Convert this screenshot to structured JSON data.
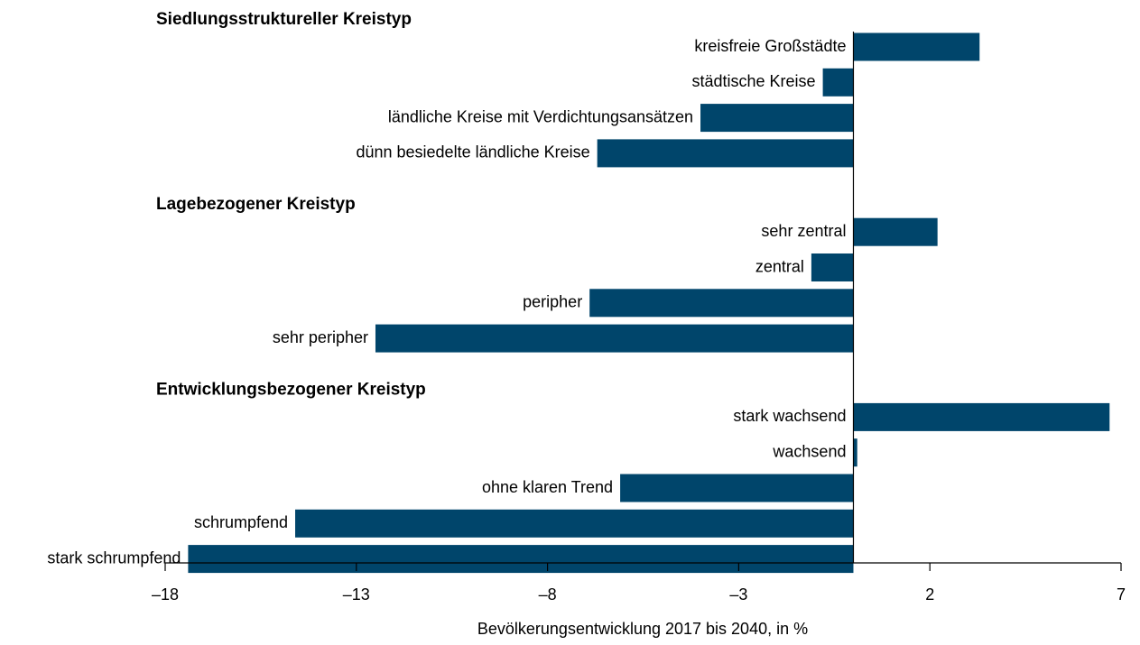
{
  "chart_data": {
    "type": "bar",
    "orientation": "horizontal",
    "color": "#00456b",
    "x_label": "Bevölkerungsentwicklung 2017 bis 2040, in %",
    "xlim": [
      -18,
      7
    ],
    "xticks": [
      {
        "value": -18,
        "label": "–18"
      },
      {
        "value": -13,
        "label": "–13"
      },
      {
        "value": -8,
        "label": "–8"
      },
      {
        "value": -3,
        "label": "–3"
      },
      2,
      7
    ],
    "groups": [
      {
        "title": "Siedlungsstruktureller Kreistyp",
        "categories": [
          "kreisfreie Großstädte",
          "städtische Kreise",
          "ländliche Kreise mit Verdichtungsansätzen",
          "dünn besiedelte ländliche Kreise"
        ],
        "values": [
          3.3,
          -0.8,
          -4.0,
          -6.7
        ]
      },
      {
        "title": "Lagebezogener Kreistyp",
        "categories": [
          "sehr zentral",
          "zentral",
          "peripher",
          "sehr peripher"
        ],
        "values": [
          2.2,
          -1.1,
          -6.9,
          -12.5
        ]
      },
      {
        "title": "Entwicklungsbezogener  Kreistyp",
        "categories": [
          "stark wachsend",
          "wachsend",
          "ohne klaren Trend",
          "schrumpfend",
          "stark schrumpfend"
        ],
        "values": [
          6.7,
          0.1,
          -6.1,
          -14.6,
          -17.4
        ]
      }
    ]
  }
}
